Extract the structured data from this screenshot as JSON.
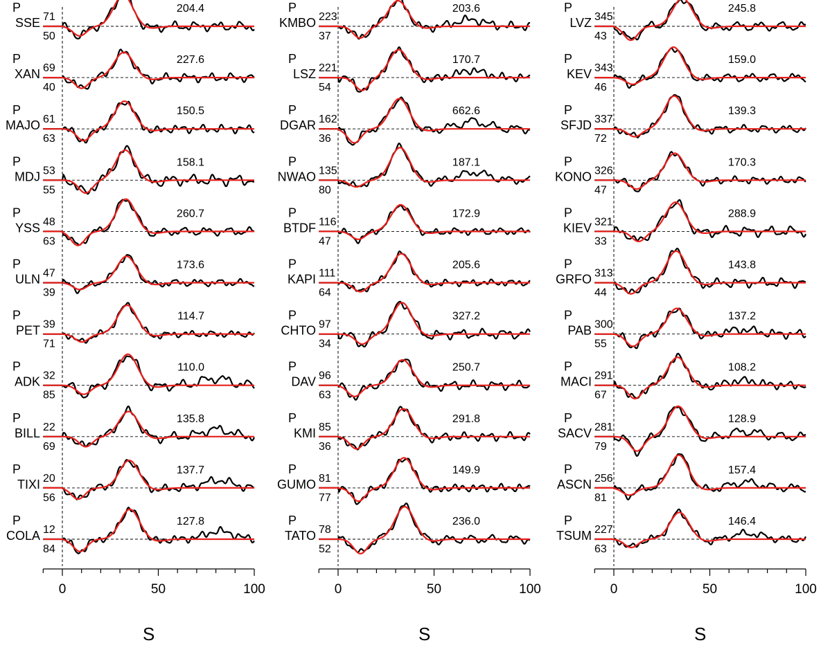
{
  "chart_data": {
    "type": "line",
    "phase_label": "P",
    "x_unit": "S",
    "xlim": [
      -10,
      100
    ],
    "x_ticks": [
      0,
      50,
      100
    ],
    "grid": false,
    "line_colors": {
      "observed": "#000000",
      "synthetic": "#e8201c"
    },
    "columns": [
      {
        "stations": [
          {
            "name": "SSE",
            "az": "71",
            "dist": "50",
            "amp": "204.4"
          },
          {
            "name": "XAN",
            "az": "69",
            "dist": "40",
            "amp": "227.6"
          },
          {
            "name": "MAJO",
            "az": "61",
            "dist": "63",
            "amp": "150.5"
          },
          {
            "name": "MDJ",
            "az": "53",
            "dist": "55",
            "amp": "158.1"
          },
          {
            "name": "YSS",
            "az": "48",
            "dist": "63",
            "amp": "260.7"
          },
          {
            "name": "ULN",
            "az": "47",
            "dist": "39",
            "amp": "173.6"
          },
          {
            "name": "PET",
            "az": "39",
            "dist": "71",
            "amp": "114.7"
          },
          {
            "name": "ADK",
            "az": "32",
            "dist": "85",
            "amp": "110.0"
          },
          {
            "name": "BILL",
            "az": "22",
            "dist": "69",
            "amp": "135.8"
          },
          {
            "name": "TIXI",
            "az": "20",
            "dist": "56",
            "amp": "137.7"
          },
          {
            "name": "COLA",
            "az": "12",
            "dist": "84",
            "amp": "127.8"
          }
        ]
      },
      {
        "stations": [
          {
            "name": "KMBO",
            "az": "223",
            "dist": "37",
            "amp": "203.6"
          },
          {
            "name": "LSZ",
            "az": "221",
            "dist": "54",
            "amp": "170.7"
          },
          {
            "name": "DGAR",
            "az": "162",
            "dist": "36",
            "amp": "662.6"
          },
          {
            "name": "NWAO",
            "az": "135",
            "dist": "80",
            "amp": "187.1"
          },
          {
            "name": "BTDF",
            "az": "116",
            "dist": "47",
            "amp": "172.9"
          },
          {
            "name": "KAPI",
            "az": "111",
            "dist": "64",
            "amp": "205.6"
          },
          {
            "name": "CHTO",
            "az": "97",
            "dist": "34",
            "amp": "327.2"
          },
          {
            "name": "DAV",
            "az": "96",
            "dist": "63",
            "amp": "250.7"
          },
          {
            "name": "KMI",
            "az": "85",
            "dist": "36",
            "amp": "291.8"
          },
          {
            "name": "GUMO",
            "az": "81",
            "dist": "77",
            "amp": "149.9"
          },
          {
            "name": "TATO",
            "az": "78",
            "dist": "52",
            "amp": "236.0"
          }
        ]
      },
      {
        "stations": [
          {
            "name": "LVZ",
            "az": "345",
            "dist": "43",
            "amp": "245.8"
          },
          {
            "name": "KEV",
            "az": "343",
            "dist": "46",
            "amp": "159.0"
          },
          {
            "name": "SFJD",
            "az": "337",
            "dist": "72",
            "amp": "139.3"
          },
          {
            "name": "KONO",
            "az": "326",
            "dist": "47",
            "amp": "170.3"
          },
          {
            "name": "KIEV",
            "az": "321",
            "dist": "33",
            "amp": "288.9"
          },
          {
            "name": "GRFO",
            "az": "313",
            "dist": "44",
            "amp": "143.8"
          },
          {
            "name": "PAB",
            "az": "300",
            "dist": "55",
            "amp": "137.2"
          },
          {
            "name": "MACI",
            "az": "291",
            "dist": "67",
            "amp": "108.2"
          },
          {
            "name": "SACV",
            "az": "281",
            "dist": "79",
            "amp": "128.9"
          },
          {
            "name": "ASCN",
            "az": "256",
            "dist": "81",
            "amp": "157.4"
          },
          {
            "name": "TSUM",
            "az": "227",
            "dist": "63",
            "amp": "146.4"
          }
        ]
      }
    ]
  }
}
